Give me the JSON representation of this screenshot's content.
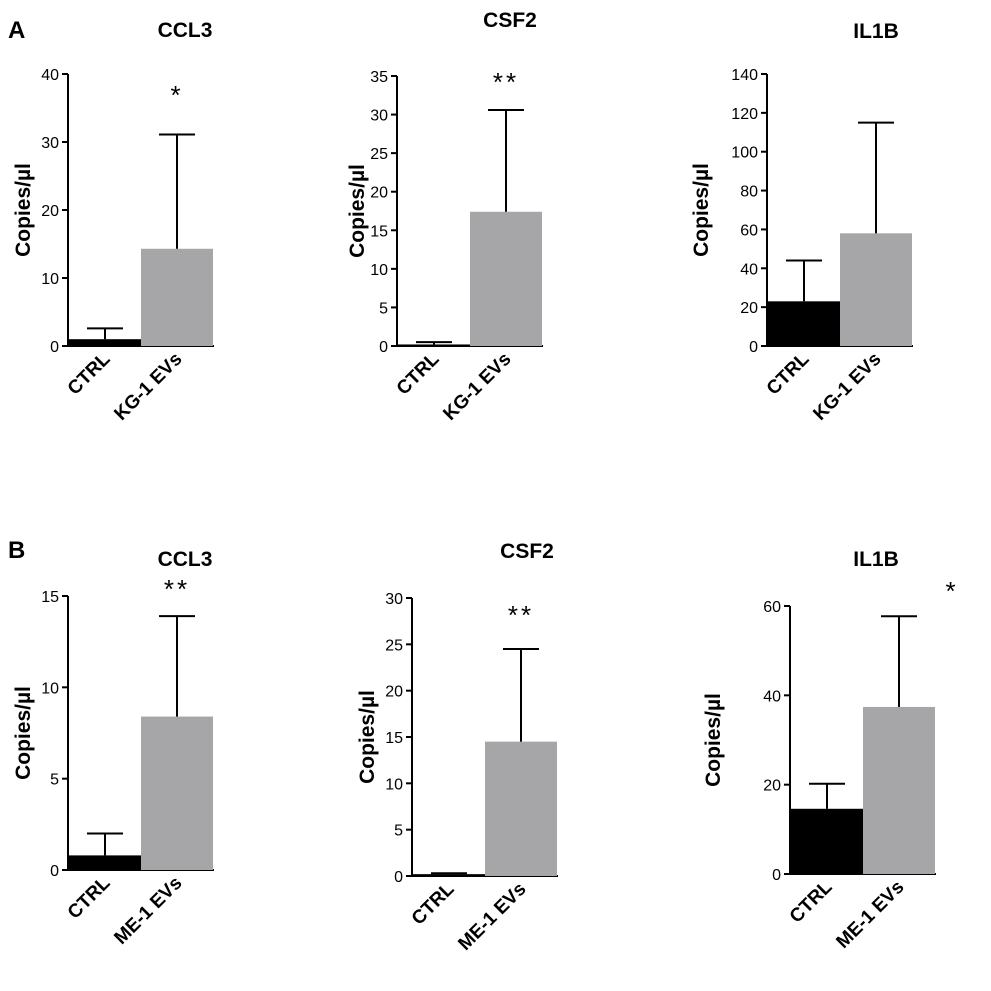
{
  "panel_labels": [
    "A",
    "B"
  ],
  "colors": {
    "ctrl": "#000000",
    "ev": "#a6a6a8",
    "axis": "#000000"
  },
  "chart_data": [
    {
      "panel": "A",
      "type": "bar",
      "title": "CCL3",
      "ylabel": "Copies/µl",
      "xlabel": "",
      "categories": [
        "CTRL",
        "KG-1 EVs"
      ],
      "values": [
        1,
        14.3
      ],
      "errors_upper": [
        2.6,
        31.1
      ],
      "ylim": [
        0,
        40
      ],
      "yticks": [
        0,
        10,
        20,
        30,
        40
      ],
      "significance": "*"
    },
    {
      "panel": "A",
      "type": "bar",
      "title": "CSF2",
      "ylabel": "Copies/µl",
      "xlabel": "",
      "categories": [
        "CTRL",
        "KG-1 EVs"
      ],
      "values": [
        0.2,
        17.4
      ],
      "errors_upper": [
        0.5,
        30.6
      ],
      "ylim": [
        0,
        35
      ],
      "yticks": [
        0,
        5,
        10,
        15,
        20,
        25,
        30,
        35
      ],
      "significance": "**"
    },
    {
      "panel": "A",
      "type": "bar",
      "title": "IL1B",
      "ylabel": "Copies/µl",
      "xlabel": "",
      "categories": [
        "CTRL",
        "KG-1 EVs"
      ],
      "values": [
        23,
        58
      ],
      "errors_upper": [
        44,
        115
      ],
      "ylim": [
        0,
        140
      ],
      "yticks": [
        0,
        20,
        40,
        60,
        80,
        100,
        120,
        140
      ],
      "significance": ""
    },
    {
      "panel": "B",
      "type": "bar",
      "title": "CCL3",
      "ylabel": "Copies/µl",
      "xlabel": "",
      "categories": [
        "CTRL",
        "ME-1 EVs"
      ],
      "values": [
        0.8,
        8.4
      ],
      "errors_upper": [
        2.0,
        13.9
      ],
      "ylim": [
        0,
        15
      ],
      "yticks": [
        0,
        5,
        10,
        15
      ],
      "significance": "**"
    },
    {
      "panel": "B",
      "type": "bar",
      "title": "CSF2",
      "ylabel": "Copies/µl",
      "xlabel": "",
      "categories": [
        "CTRL",
        "ME-1 EVs"
      ],
      "values": [
        0.2,
        14.5
      ],
      "errors_upper": [
        0.3,
        24.5
      ],
      "ylim": [
        0,
        30
      ],
      "yticks": [
        0,
        5,
        10,
        15,
        20,
        25,
        30
      ],
      "significance": "**"
    },
    {
      "panel": "B",
      "type": "bar",
      "title": "IL1B",
      "ylabel": "Copies/µl",
      "xlabel": "",
      "categories": [
        "CTRL",
        "ME-1 EVs"
      ],
      "values": [
        14.6,
        37.4
      ],
      "errors_upper": [
        20.2,
        57.7
      ],
      "ylim": [
        0,
        60
      ],
      "yticks": [
        0,
        20,
        40,
        60
      ],
      "significance": "*"
    }
  ]
}
